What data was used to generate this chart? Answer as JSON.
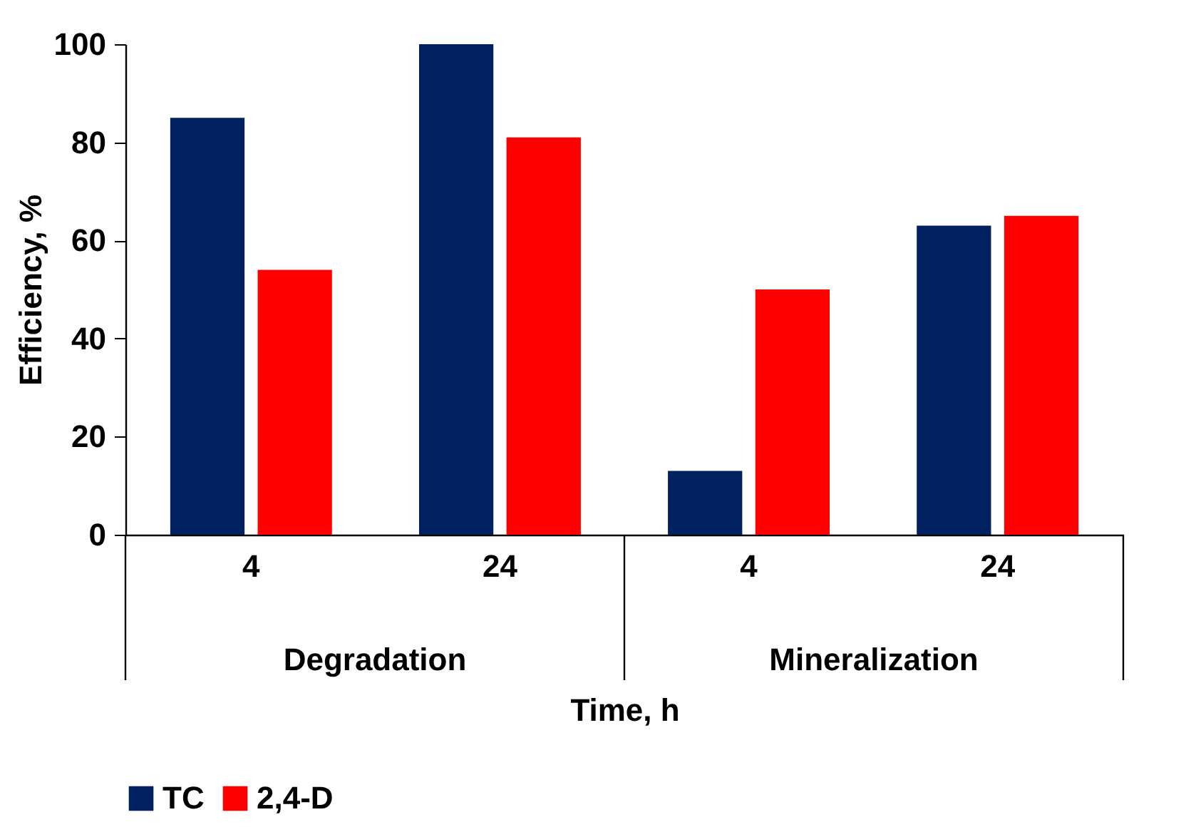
{
  "chart_data": {
    "type": "bar",
    "ylabel": "Efficiency, %",
    "xlabel": "Time, h",
    "categories": [
      "4",
      "24",
      "4",
      "24"
    ],
    "annotations": [
      "Degradation",
      "Mineralization"
    ],
    "series": [
      {
        "name": "TC",
        "color": "#002060",
        "values": [
          85,
          100,
          13,
          63
        ]
      },
      {
        "name": "2,4-D",
        "color": "#ff0000",
        "values": [
          54,
          81,
          50,
          65
        ]
      }
    ],
    "ylim": [
      0,
      100
    ],
    "yticks": [
      0,
      20,
      40,
      60,
      80,
      100
    ],
    "grid": false,
    "legend": "bottom"
  }
}
